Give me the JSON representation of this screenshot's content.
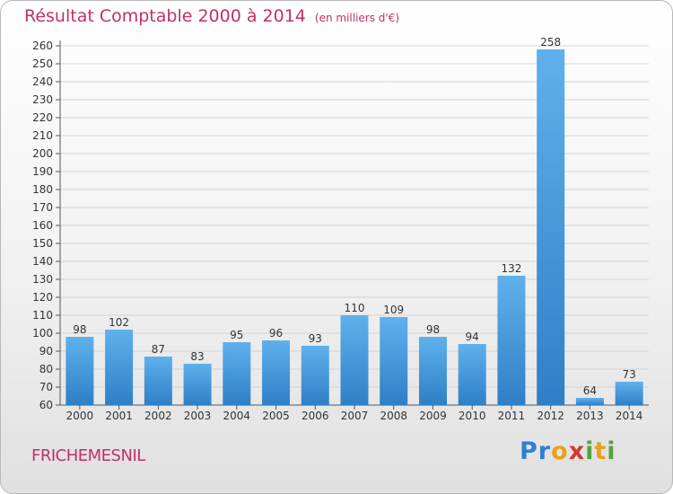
{
  "header": {
    "title": "Résultat Comptable 2000 à 2014",
    "subtitle": "(en milliers d'€)"
  },
  "footer": {
    "city": "FRICHEMESNIL",
    "brand": "Proxiti"
  },
  "colors": {
    "title": "#c0306a",
    "bar_light": "#5fb1ec",
    "bar_dark": "#2f7fc7",
    "grid": "#d3d3d3"
  },
  "chart_data": {
    "type": "bar",
    "categories": [
      "2000",
      "2001",
      "2002",
      "2003",
      "2004",
      "2005",
      "2006",
      "2007",
      "2008",
      "2009",
      "2010",
      "2011",
      "2012",
      "2013",
      "2014"
    ],
    "values": [
      98,
      102,
      87,
      83,
      95,
      96,
      93,
      110,
      109,
      98,
      94,
      132,
      258,
      64,
      73
    ],
    "ylim": [
      60,
      260
    ],
    "ytick_step": 10,
    "grid": true,
    "data_labels": true
  }
}
